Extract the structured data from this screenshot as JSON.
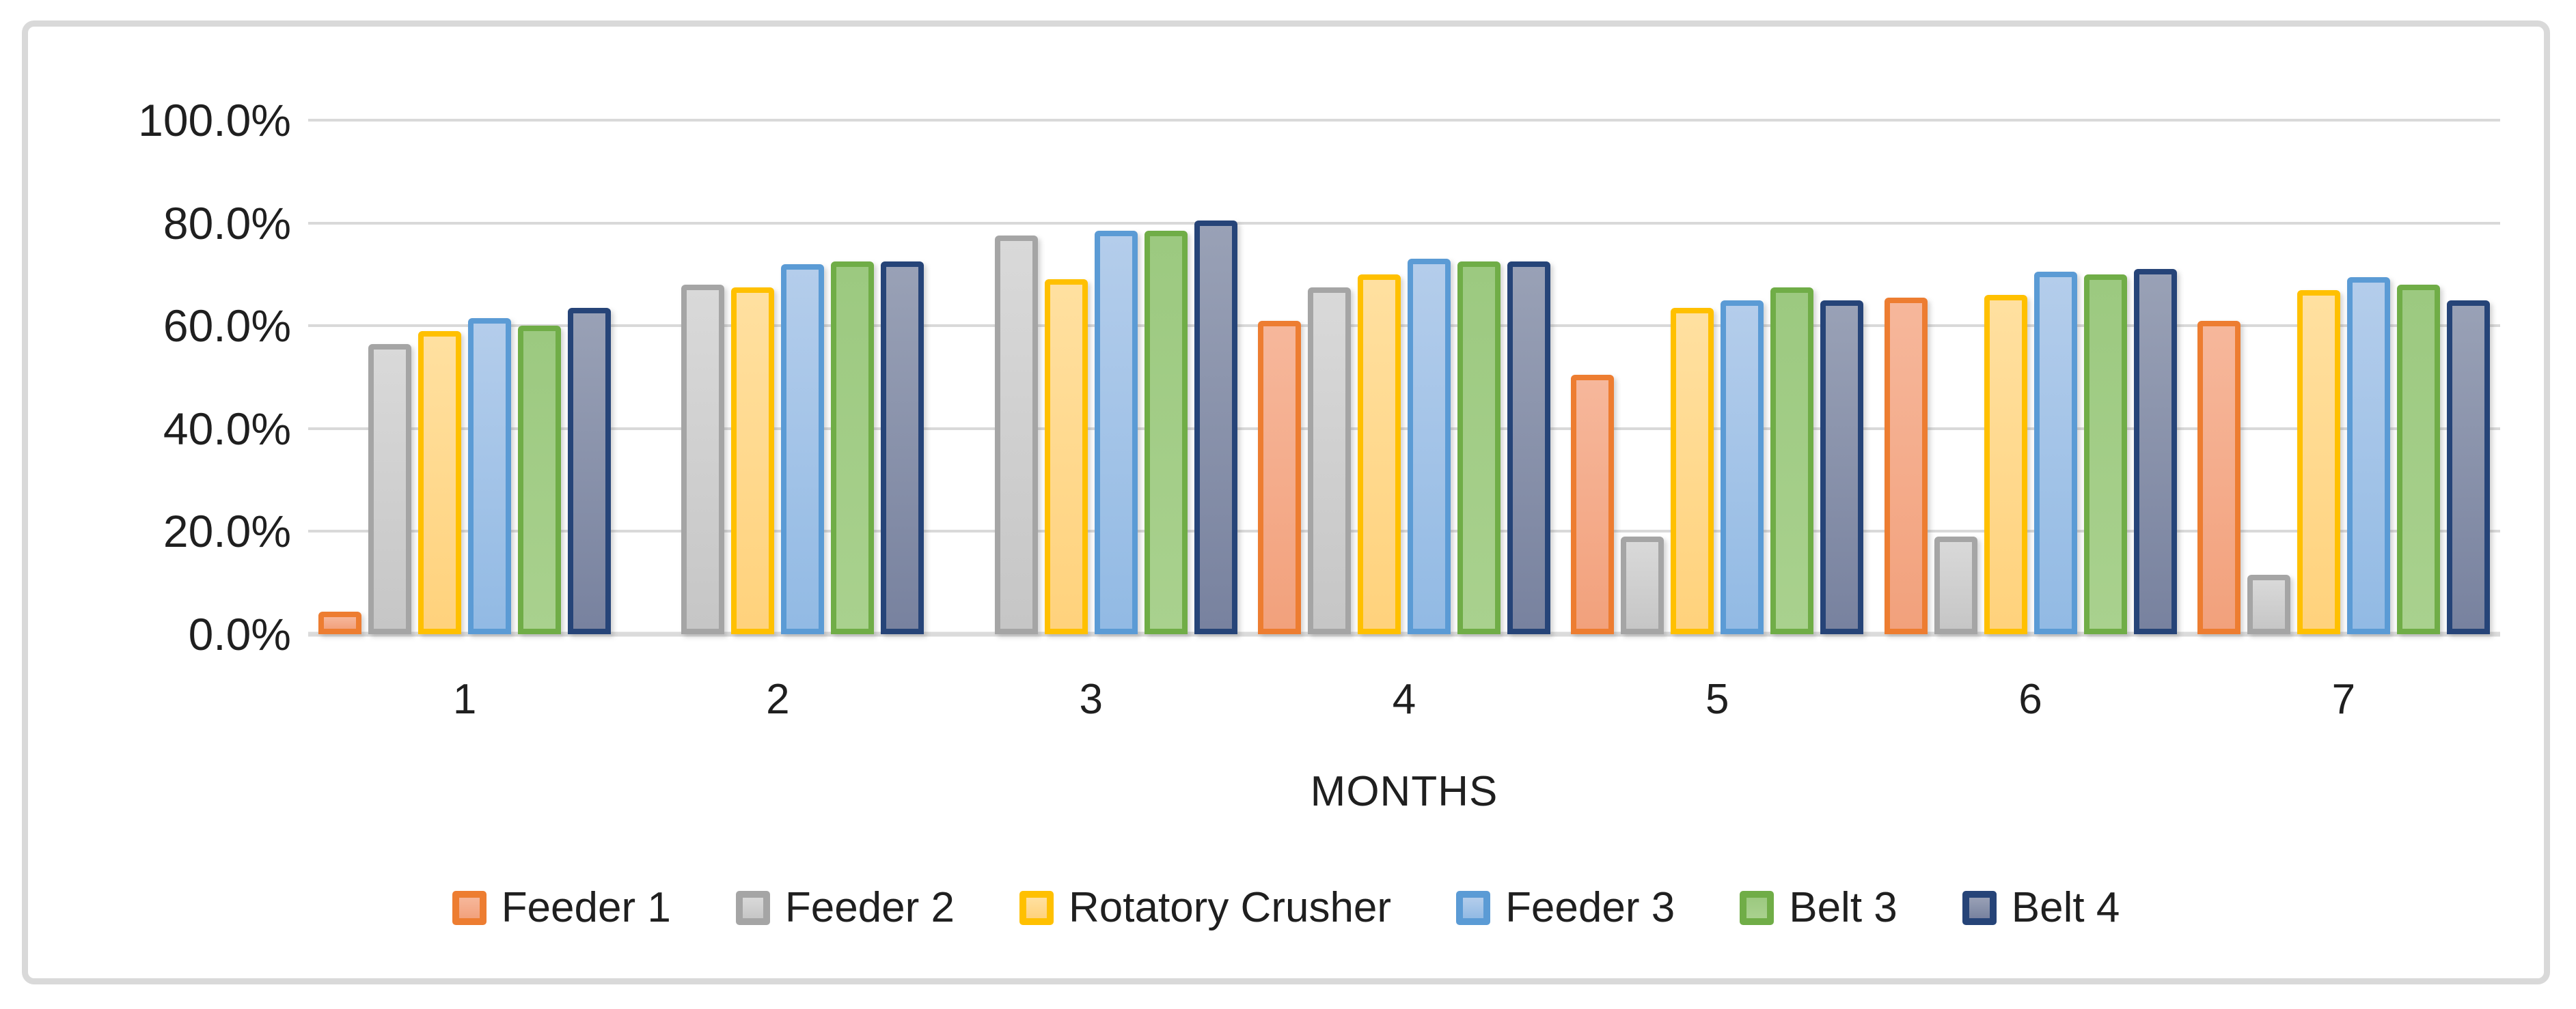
{
  "figure": {
    "background": "#FFFFFF",
    "frame_color": "#D9D9D9",
    "grid_color": "#D9D9D9",
    "axis_color": "#DBDBDB",
    "text_color": "#1F1F1F"
  },
  "chart_data": {
    "type": "bar",
    "title": "",
    "xlabel": "MONTHS",
    "ylabel": "",
    "categories": [
      "1",
      "2",
      "3",
      "4",
      "5",
      "6",
      "7"
    ],
    "y_ticks": [
      "100.0%",
      "80.0%",
      "60.0%",
      "40.0%",
      "20.0%",
      "0.0%"
    ],
    "ylim": [
      0,
      100
    ],
    "grid": true,
    "legend_position": "bottom-center",
    "series": [
      {
        "name": "Feeder 1",
        "border_color": "#ED7D31",
        "fill_top": "#F6B79B",
        "fill_bottom": "#F2A17C",
        "values": [
          4.4,
          null,
          null,
          61,
          50.5,
          65.5,
          61
        ]
      },
      {
        "name": "Feeder 2",
        "border_color": "#A5A5A5",
        "fill_top": "#D9D9D9",
        "fill_bottom": "#C6C6C6",
        "values": [
          56.5,
          68,
          77.5,
          67.5,
          19,
          19,
          11.5
        ]
      },
      {
        "name": "Rotatory Crusher",
        "border_color": "#FFC000",
        "fill_top": "#FFE0A0",
        "fill_bottom": "#FFD27C",
        "values": [
          59,
          67.5,
          69,
          70,
          63.5,
          66,
          67
        ]
      },
      {
        "name": "Feeder 3",
        "border_color": "#5B9BD5",
        "fill_top": "#B4CDEB",
        "fill_bottom": "#92BAE4",
        "values": [
          61.5,
          72,
          78.5,
          73,
          65,
          70.5,
          69.5
        ]
      },
      {
        "name": "Belt 3",
        "border_color": "#70AD47",
        "fill_top": "#9CC980",
        "fill_bottom": "#A9D18E",
        "values": [
          60,
          72.5,
          78.5,
          72.5,
          67.5,
          70,
          68
        ]
      },
      {
        "name": "Belt 4",
        "border_color": "#264478",
        "fill_top": "#99A1B6",
        "fill_bottom": "#78829F",
        "values": [
          63.5,
          72.5,
          80.5,
          72.5,
          65,
          71,
          65
        ]
      }
    ]
  }
}
